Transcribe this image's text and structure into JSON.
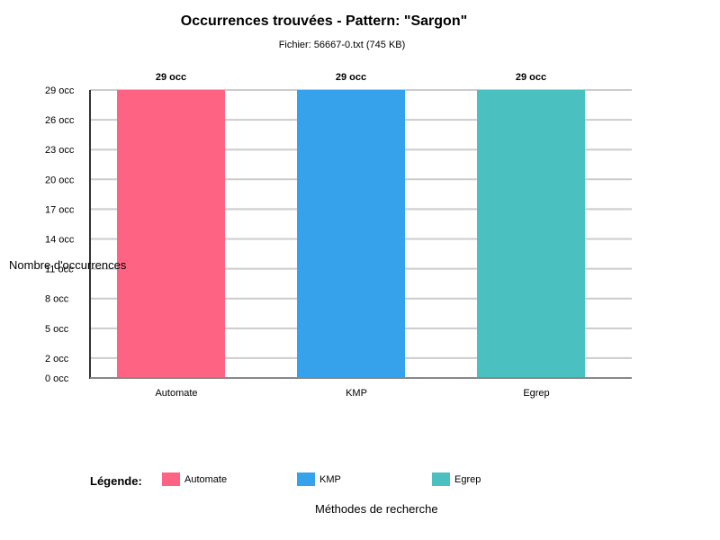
{
  "chart_data": {
    "type": "bar",
    "title": "Occurrences trouvées - Pattern: \"Sargon\"",
    "subtitle": "Fichier: 56667-0.txt (745 KB)",
    "xlabel": "Méthodes de recherche",
    "ylabel": "Nombre d'occurrences",
    "categories": [
      "Automate",
      "KMP",
      "Egrep"
    ],
    "values": [
      29,
      29,
      29
    ],
    "value_labels": [
      "29 occ",
      "29 occ",
      "29 occ"
    ],
    "colors": [
      "#ff6384",
      "#36a2eb",
      "#4bc0c0"
    ],
    "ylim": [
      0,
      29
    ],
    "yticks": [
      0,
      2,
      5,
      8,
      11,
      14,
      17,
      20,
      23,
      26,
      29
    ],
    "ytick_labels": [
      "0 occ",
      "2 occ",
      "5 occ",
      "8 occ",
      "11 occ",
      "14 occ",
      "17 occ",
      "20 occ",
      "23 occ",
      "26 occ",
      "29 occ"
    ],
    "grid": true,
    "legend_title": "Légende:",
    "legend_placement": "bottom"
  }
}
